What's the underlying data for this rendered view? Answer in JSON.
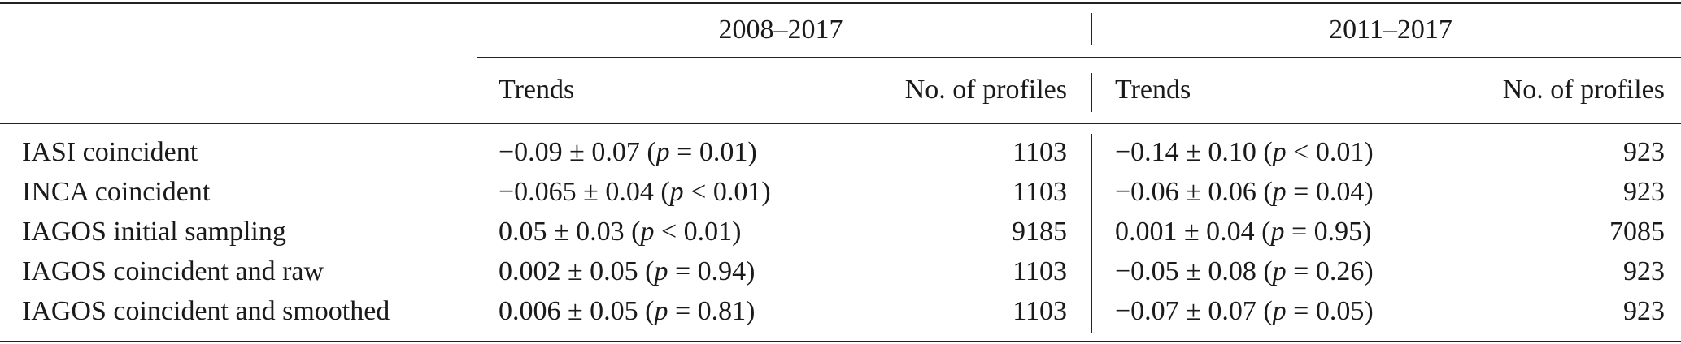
{
  "table": {
    "groups": [
      "2008–2017",
      "2011–2017"
    ],
    "subheaders": [
      "Trends",
      "No. of profiles",
      "Trends",
      "No. of profiles"
    ],
    "rows": [
      [
        "IASI coincident",
        "−0.09 ± 0.07 (p = 0.01)",
        1103,
        "−0.14 ± 0.10 (p < 0.01)",
        923
      ],
      [
        "INCA coincident",
        "−0.065 ± 0.04 (p < 0.01)",
        1103,
        "−0.06 ± 0.06 (p = 0.04)",
        923
      ],
      [
        "IAGOS initial sampling",
        "0.05 ± 0.03 (p < 0.01)",
        9185,
        "0.001 ± 0.04 (p = 0.95)",
        7085
      ],
      [
        "IAGOS coincident and raw",
        "0.002 ± 0.05 (p = 0.94)",
        1103,
        "−0.05 ± 0.08 (p = 0.26)",
        923
      ],
      [
        "IAGOS coincident and smoothed",
        "0.006 ± 0.05 (p = 0.81)",
        1103,
        "−0.07 ± 0.07 (p = 0.05)",
        923
      ]
    ]
  }
}
